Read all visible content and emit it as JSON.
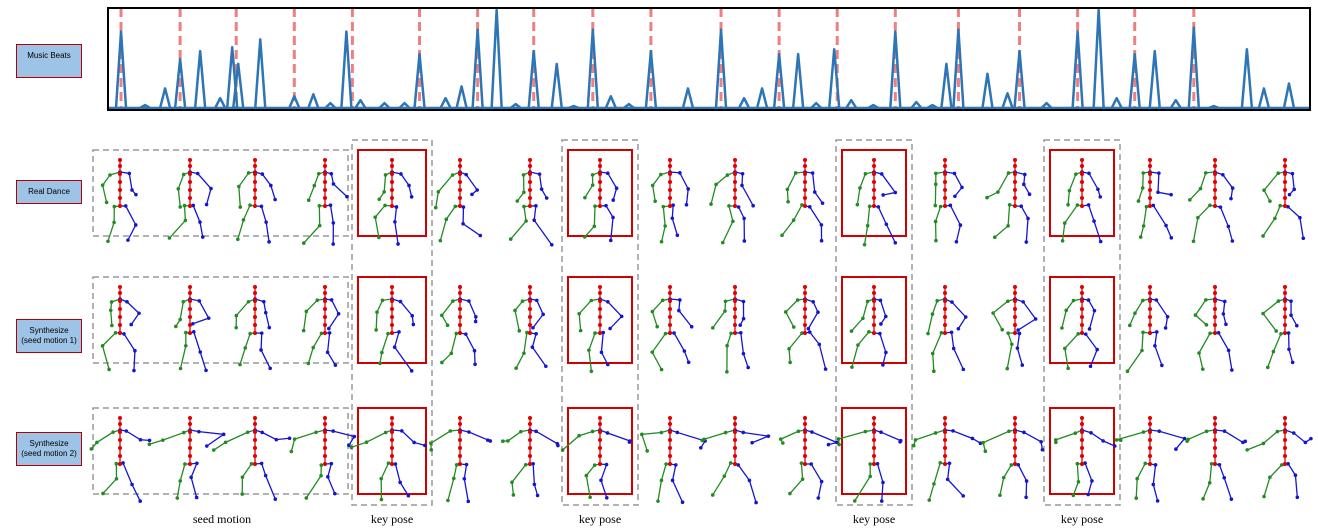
{
  "music_beats": {
    "label": "Music Beats",
    "type": "line",
    "xlim": [
      0,
      1200
    ],
    "ylim": [
      0,
      1
    ],
    "beats": [
      13,
      72,
      128,
      186,
      244,
      311,
      369,
      425,
      484,
      542,
      612,
      670,
      728,
      786,
      849,
      910,
      968,
      1025,
      1084
    ],
    "peaks": {
      "x": [
        13,
        37,
        57,
        72,
        92,
        112,
        124,
        130,
        152,
        186,
        205,
        222,
        238,
        252,
        276,
        296,
        311,
        337,
        353,
        369,
        388,
        407,
        425,
        448,
        465,
        484,
        502,
        520,
        542,
        579,
        612,
        635,
        653,
        670,
        689,
        707,
        725,
        742,
        764,
        786,
        807,
        823,
        837,
        849,
        878,
        898,
        910,
        937,
        968,
        989,
        1007,
        1025,
        1045,
        1066,
        1084,
        1104,
        1137,
        1154,
        1179
      ],
      "values": [
        0.78,
        0.03,
        0.2,
        0.5,
        0.58,
        0.1,
        0.62,
        0.45,
        0.7,
        0.12,
        0.14,
        0.05,
        0.78,
        0.08,
        0.05,
        0.05,
        0.55,
        0.1,
        0.22,
        0.8,
        1.0,
        0.04,
        0.58,
        0.45,
        0.02,
        0.8,
        0.12,
        0.04,
        0.58,
        0.2,
        0.8,
        0.1,
        0.2,
        0.55,
        0.55,
        0.05,
        0.6,
        0.08,
        0.03,
        0.78,
        0.06,
        0.03,
        0.45,
        0.8,
        0.35,
        0.15,
        0.58,
        0.05,
        0.78,
        1.0,
        0.1,
        0.55,
        0.58,
        0.08,
        0.82,
        0.02,
        0.6,
        0.2,
        0.25
      ]
    }
  },
  "rows": [
    {
      "label": "Real Dance"
    },
    {
      "label": "Synthesize (seed motion 1)"
    },
    {
      "label": "Synthesize (seed motion 2)"
    }
  ],
  "captions": {
    "seed_motion": "seed motion",
    "key_pose": [
      "key pose",
      "key pose",
      "key pose",
      "key pose"
    ]
  }
}
